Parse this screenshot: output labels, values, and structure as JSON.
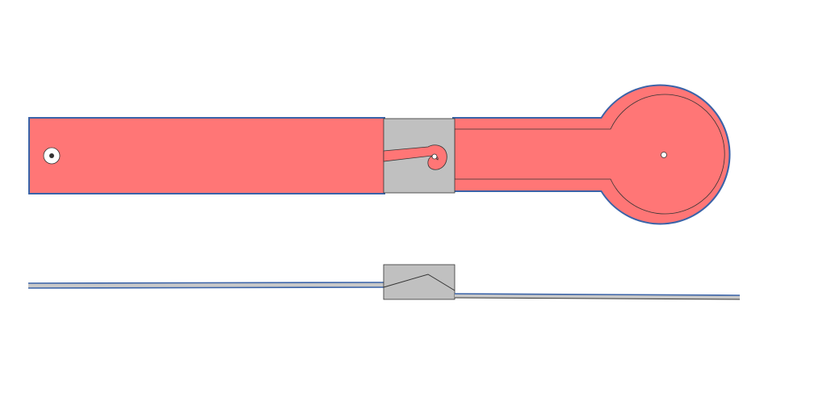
{
  "diagram": {
    "views": [
      "top-view",
      "side-view"
    ],
    "colors": {
      "background": "#ffffff",
      "body_fill": "#ff7676",
      "body_outline": "#3a63a8",
      "clip_fill": "#c0c0c0",
      "line_dark": "#333333",
      "hole_fill": "#ffffff",
      "side_strip_fill": "#c8c8c8"
    }
  }
}
